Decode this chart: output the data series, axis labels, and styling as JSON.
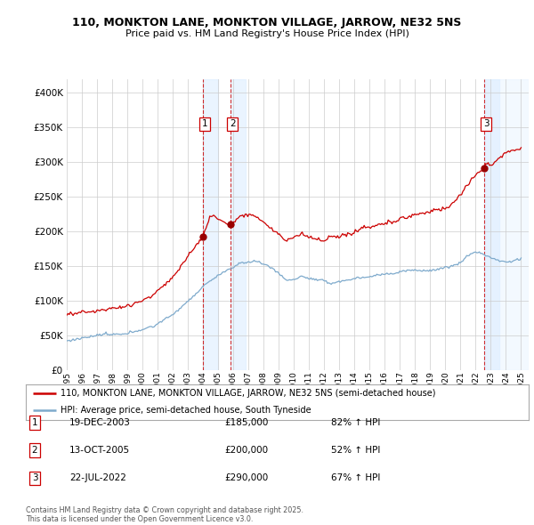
{
  "title_line1": "110, MONKTON LANE, MONKTON VILLAGE, JARROW, NE32 5NS",
  "title_line2": "Price paid vs. HM Land Registry's House Price Index (HPI)",
  "legend_line1": "110, MONKTON LANE, MONKTON VILLAGE, JARROW, NE32 5NS (semi-detached house)",
  "legend_line2": "HPI: Average price, semi-detached house, South Tyneside",
  "transactions": [
    {
      "num": 1,
      "date": "19-DEC-2003",
      "price": 185000,
      "pct": "82%",
      "dir": "↑",
      "year_float": 2003.97
    },
    {
      "num": 2,
      "date": "13-OCT-2005",
      "price": 200000,
      "pct": "52%",
      "dir": "↑",
      "year_float": 2005.79
    },
    {
      "num": 3,
      "date": "22-JUL-2022",
      "price": 290000,
      "pct": "67%",
      "dir": "↑",
      "year_float": 2022.55
    }
  ],
  "footnote": "Contains HM Land Registry data © Crown copyright and database right 2025.\nThis data is licensed under the Open Government Licence v3.0.",
  "red_color": "#cc0000",
  "blue_color": "#7eaacc",
  "grid_color": "#cccccc",
  "bg_color": "#ffffff",
  "shade_color": "#ddeeff",
  "ylim": [
    0,
    420000
  ],
  "xlim_start": 1995.0,
  "xlim_end": 2025.5
}
